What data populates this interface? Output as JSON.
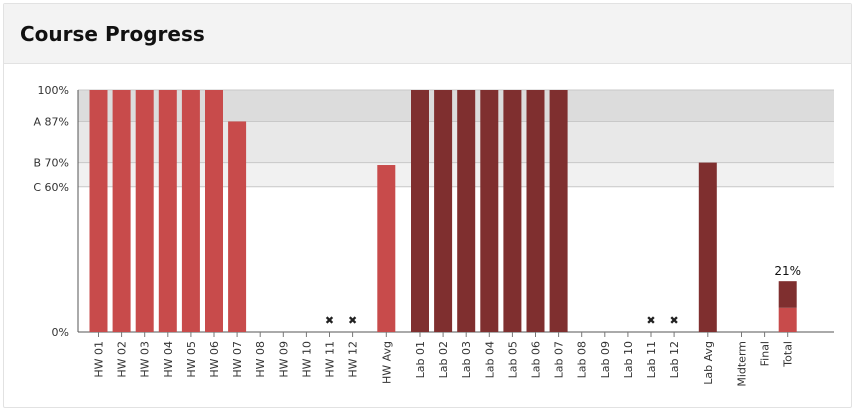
{
  "panel": {
    "title": "Course Progress"
  },
  "chart_data": {
    "type": "bar",
    "title": "",
    "xlabel": "",
    "ylabel": "",
    "ylim": [
      0,
      100
    ],
    "grid": false,
    "bands": [
      {
        "from": 87,
        "to": 100,
        "color": "#dcdcdc"
      },
      {
        "from": 70,
        "to": 87,
        "color": "#e8e8e8"
      },
      {
        "from": 60,
        "to": 70,
        "color": "#f1f1f1"
      }
    ],
    "yticks": [
      {
        "value": 100,
        "label": "100%"
      },
      {
        "value": 87,
        "label": "A 87%"
      },
      {
        "value": 70,
        "label": "B 70%"
      },
      {
        "value": 60,
        "label": "C 60%"
      },
      {
        "value": 0,
        "label": "0%"
      }
    ],
    "colors": {
      "homework": "#c84b4b",
      "lab": "#7f2f2f",
      "missing_mark": "#222222"
    },
    "categories": [
      "HW 01",
      "HW 02",
      "HW 03",
      "HW 04",
      "HW 05",
      "HW 06",
      "HW 07",
      "HW 08",
      "HW 09",
      "HW 10",
      "HW 11",
      "HW 12",
      "HW Avg",
      "Lab 01",
      "Lab 02",
      "Lab 03",
      "Lab 04",
      "Lab 05",
      "Lab 06",
      "Lab 07",
      "Lab 08",
      "Lab 09",
      "Lab 10",
      "Lab 11",
      "Lab 12",
      "Lab Avg",
      "Midterm",
      "Final",
      "Total"
    ],
    "groups": [
      "homework",
      "homework",
      "homework",
      "homework",
      "homework",
      "homework",
      "homework",
      "homework",
      "homework",
      "homework",
      "homework",
      "homework",
      "homework",
      "lab",
      "lab",
      "lab",
      "lab",
      "lab",
      "lab",
      "lab",
      "lab",
      "lab",
      "lab",
      "lab",
      "lab",
      "lab",
      "exam",
      "exam",
      "total"
    ],
    "values": [
      100,
      100,
      100,
      100,
      100,
      100,
      87,
      null,
      null,
      null,
      0,
      0,
      69,
      100,
      100,
      100,
      100,
      100,
      100,
      100,
      null,
      null,
      null,
      0,
      0,
      70,
      null,
      null,
      21
    ],
    "missing": [
      "HW 11",
      "HW 12",
      "Lab 11",
      "Lab 12"
    ],
    "total_breakdown": [
      {
        "name": "homework",
        "value": 10
      },
      {
        "name": "lab",
        "value": 11
      }
    ],
    "data_labels": [
      {
        "category": "Total",
        "text": "21%"
      }
    ]
  }
}
